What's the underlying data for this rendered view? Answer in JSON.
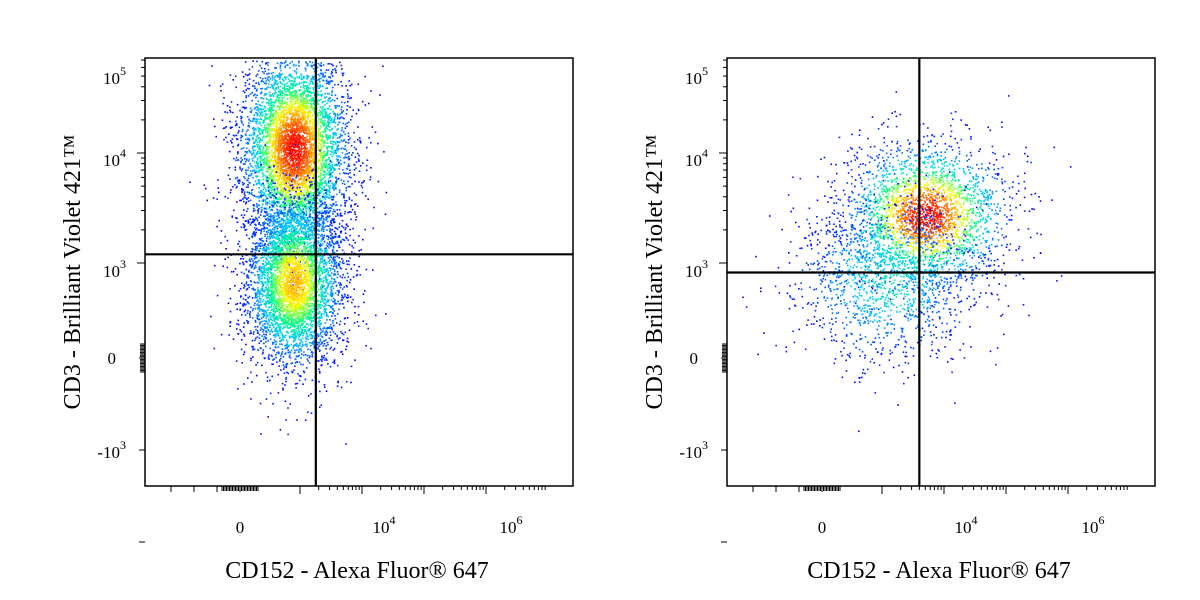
{
  "chart_data": [
    {
      "type": "scatter",
      "subtype": "flow-cytometry density dot plot (pseudocolor), biexponential axes",
      "xlabel": "CD152 - Alexa Fluor® 647",
      "ylabel": "CD3 - Brilliant Violet 421™",
      "x_ticks": [
        {
          "base": "0",
          "exp": "",
          "value": 0
        },
        {
          "base": "10",
          "exp": "4",
          "value": 10000
        },
        {
          "base": "10",
          "exp": "6",
          "value": 1000000
        }
      ],
      "y_ticks": [
        {
          "base": "10",
          "exp": "5",
          "value": 100000
        },
        {
          "base": "10",
          "exp": "4",
          "value": 10000
        },
        {
          "base": "10",
          "exp": "3",
          "value": 1000
        },
        {
          "base": "0",
          "exp": "",
          "value": 0
        },
        {
          "base": "-10",
          "exp": "3",
          "value": -1000
        }
      ],
      "xlim": [
        -3000,
        10000000
      ],
      "ylim": [
        -2500,
        120000
      ],
      "x_scale": "biexponential",
      "y_scale": "biexponential",
      "quadrant_gate": {
        "x": 1800,
        "y": 1200
      },
      "populations": [
        {
          "name": "",
          "center": {
            "x": 500,
            "y": 11000
          },
          "relative_size": 1.0,
          "peak_density": "high"
        },
        {
          "name": "",
          "center": {
            "x": 500,
            "y": 250
          },
          "relative_size": 0.9,
          "peak_density": "medium"
        }
      ],
      "grid": false,
      "legend": "none",
      "density_colors": [
        "#0000ff",
        "#00c8ff",
        "#00ff80",
        "#ffff00",
        "#ff8000",
        "#ff0000"
      ]
    },
    {
      "type": "scatter",
      "subtype": "flow-cytometry density dot plot (pseudocolor), biexponential axes",
      "xlabel": "CD152 - Alexa Fluor® 647",
      "ylabel": "CD3 - Brilliant Violet 421™",
      "x_ticks": [
        {
          "base": "0",
          "exp": "",
          "value": 0
        },
        {
          "base": "10",
          "exp": "4",
          "value": 10000
        },
        {
          "base": "10",
          "exp": "6",
          "value": 1000000
        }
      ],
      "y_ticks": [
        {
          "base": "10",
          "exp": "5",
          "value": 100000
        },
        {
          "base": "10",
          "exp": "4",
          "value": 10000
        },
        {
          "base": "10",
          "exp": "3",
          "value": 1000
        },
        {
          "base": "0",
          "exp": "",
          "value": 0
        },
        {
          "base": "-10",
          "exp": "3",
          "value": -1000
        }
      ],
      "xlim": [
        -3000,
        10000000
      ],
      "ylim": [
        -2500,
        120000
      ],
      "x_scale": "biexponential",
      "y_scale": "biexponential",
      "quadrant_gate": {
        "x": 4000,
        "y": 500
      },
      "populations": [
        {
          "name": "",
          "center": {
            "x": 5000,
            "y": 2700
          },
          "relative_size": 1.0,
          "peak_density": "high"
        },
        {
          "name": "",
          "center": {
            "x": 1200,
            "y": 300
          },
          "relative_size": 0.35,
          "peak_density": "low"
        }
      ],
      "grid": false,
      "legend": "none",
      "density_colors": [
        "#0000ff",
        "#00c8ff",
        "#00ff80",
        "#ffff00",
        "#ff8000",
        "#ff0000"
      ]
    }
  ]
}
